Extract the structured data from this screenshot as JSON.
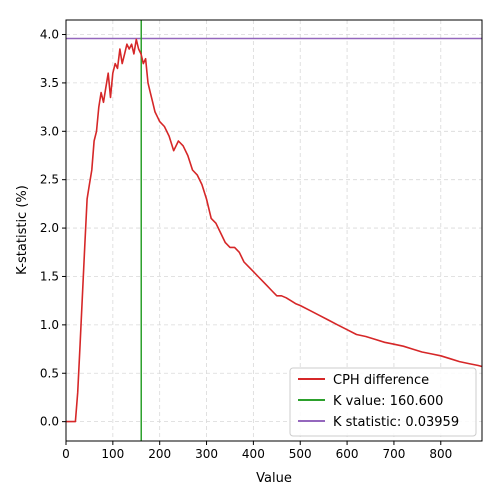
{
  "chart_data": {
    "type": "line",
    "xlabel": "Value",
    "ylabel": "K-statistic (%)",
    "xlim": [
      0,
      888
    ],
    "ylim": [
      -0.2,
      4.15
    ],
    "xticks": [
      0,
      100,
      200,
      300,
      400,
      500,
      600,
      700,
      800
    ],
    "yticks": [
      0.0,
      0.5,
      1.0,
      1.5,
      2.0,
      2.5,
      3.0,
      3.5,
      4.0
    ],
    "ytick_labels": [
      "0.0",
      "0.5",
      "1.0",
      "1.5",
      "2.0",
      "2.5",
      "3.0",
      "3.5",
      "4.0"
    ],
    "grid": true,
    "legend_position": "bottom-right",
    "series": [
      {
        "name": "CPH difference",
        "color": "#d62728",
        "x": [
          0,
          10,
          20,
          25,
          30,
          35,
          40,
          45,
          50,
          55,
          60,
          65,
          70,
          75,
          80,
          85,
          90,
          95,
          100,
          105,
          110,
          115,
          120,
          125,
          130,
          135,
          140,
          145,
          150,
          155,
          160,
          165,
          170,
          175,
          180,
          185,
          190,
          195,
          200,
          210,
          220,
          230,
          240,
          250,
          260,
          270,
          280,
          290,
          300,
          310,
          320,
          330,
          340,
          350,
          360,
          370,
          380,
          390,
          400,
          410,
          420,
          430,
          440,
          450,
          460,
          470,
          480,
          490,
          500,
          520,
          540,
          560,
          580,
          600,
          620,
          640,
          660,
          680,
          700,
          720,
          740,
          760,
          780,
          800,
          820,
          840,
          860,
          880,
          888
        ],
        "y": [
          0.0,
          0.0,
          0.0,
          0.3,
          0.8,
          1.3,
          1.8,
          2.3,
          2.45,
          2.6,
          2.9,
          3.0,
          3.25,
          3.4,
          3.3,
          3.45,
          3.6,
          3.35,
          3.6,
          3.7,
          3.65,
          3.85,
          3.7,
          3.8,
          3.9,
          3.85,
          3.9,
          3.8,
          3.95,
          3.85,
          3.8,
          3.7,
          3.75,
          3.5,
          3.4,
          3.3,
          3.2,
          3.15,
          3.1,
          3.05,
          2.95,
          2.8,
          2.9,
          2.85,
          2.75,
          2.6,
          2.55,
          2.45,
          2.3,
          2.1,
          2.05,
          1.95,
          1.85,
          1.8,
          1.8,
          1.75,
          1.65,
          1.6,
          1.55,
          1.5,
          1.45,
          1.4,
          1.35,
          1.3,
          1.3,
          1.28,
          1.25,
          1.22,
          1.2,
          1.15,
          1.1,
          1.05,
          1.0,
          0.95,
          0.9,
          0.88,
          0.85,
          0.82,
          0.8,
          0.78,
          0.75,
          0.72,
          0.7,
          0.68,
          0.65,
          0.62,
          0.6,
          0.58,
          0.57
        ]
      },
      {
        "name": "K value: 160.600",
        "color": "#2ca02c",
        "vline_x": 160.6
      },
      {
        "name": "K statistic: 0.03959",
        "color": "#9467bd",
        "hline_y": 3.959
      }
    ]
  }
}
